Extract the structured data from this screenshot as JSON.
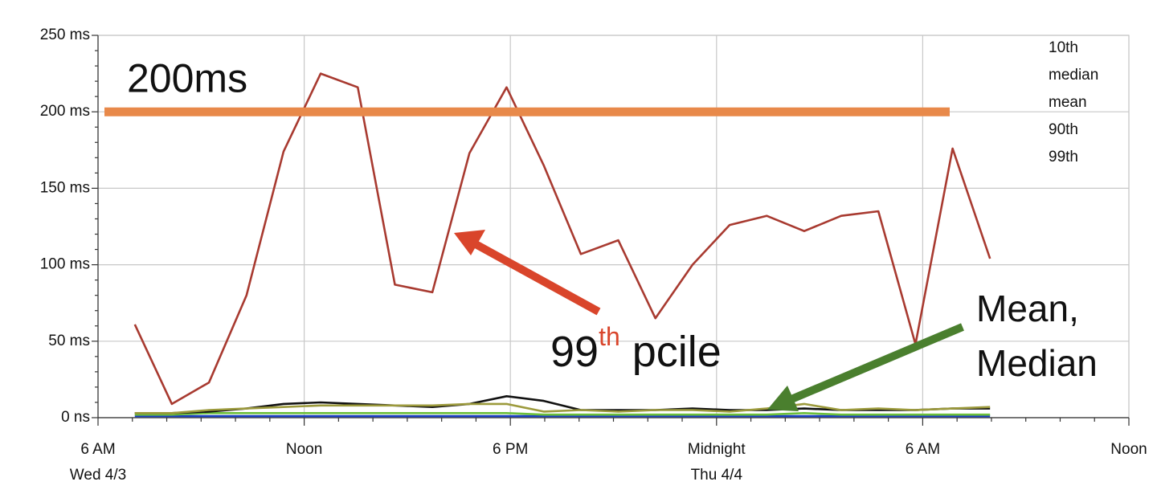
{
  "chart_data": {
    "type": "line",
    "x": [
      1.07,
      2.15,
      3.23,
      4.32,
      5.4,
      6.48,
      7.56,
      8.64,
      9.73,
      10.81,
      11.89,
      12.97,
      14.05,
      15.14,
      16.22,
      17.3,
      18.38,
      19.46,
      20.55,
      21.63,
      22.71,
      23.79,
      24.87,
      25.96
    ],
    "series": [
      {
        "name": "10th",
        "color": "#1a3fc4",
        "values": [
          1,
          1,
          1,
          1,
          1,
          1,
          1,
          1,
          1,
          1,
          1,
          1,
          1,
          1,
          1,
          1,
          1,
          1,
          1,
          1,
          1,
          1,
          1,
          1
        ]
      },
      {
        "name": "median",
        "color": "#6cbf3a",
        "values": [
          2,
          2,
          3,
          3,
          3,
          3,
          3,
          3,
          3,
          3,
          3,
          2,
          2,
          2,
          2,
          2,
          2,
          2,
          3,
          2,
          2,
          2,
          2,
          2
        ]
      },
      {
        "name": "mean",
        "color": "#111111",
        "values": [
          3,
          3,
          4,
          6,
          9,
          10,
          9,
          8,
          7,
          9,
          14,
          11,
          5,
          5,
          5,
          6,
          5,
          5,
          6,
          5,
          5,
          5,
          6,
          6
        ]
      },
      {
        "name": "90th",
        "color": "#9c9a3c",
        "values": [
          3,
          3,
          5,
          6,
          7,
          8,
          8,
          8,
          8,
          9,
          9,
          4,
          5,
          4,
          5,
          5,
          4,
          6,
          9,
          5,
          6,
          5,
          6,
          7
        ]
      },
      {
        "name": "99th",
        "color": "#a83a30",
        "values": [
          61,
          9,
          23,
          80,
          174,
          225,
          216,
          87,
          82,
          173,
          216,
          165,
          107,
          116,
          65,
          100,
          126,
          132,
          122,
          132,
          135,
          48,
          176,
          104
        ]
      }
    ],
    "xlim": [
      0,
      30
    ],
    "xticks": [
      {
        "value": 0,
        "label": "6 AM"
      },
      {
        "value": 6,
        "label": "Noon"
      },
      {
        "value": 12,
        "label": "6 PM"
      },
      {
        "value": 18,
        "label": "Midnight"
      },
      {
        "value": 24,
        "label": "6 AM"
      },
      {
        "value": 30,
        "label": "Noon"
      }
    ],
    "x_minor_ticks": [
      1,
      2,
      3,
      4,
      5,
      7,
      8,
      9,
      10,
      11,
      13,
      14,
      15,
      16,
      17,
      19,
      20,
      21,
      22,
      23,
      25,
      26,
      27,
      28,
      29
    ],
    "date_labels": [
      {
        "value": 0,
        "label": "Wed 4/3"
      },
      {
        "value": 18,
        "label": "Thu 4/4"
      }
    ],
    "ylim": [
      0,
      250
    ],
    "yticks": [
      {
        "value": 0,
        "label": "0 ns"
      },
      {
        "value": 50,
        "label": "50 ms"
      },
      {
        "value": 100,
        "label": "100 ms"
      },
      {
        "value": 150,
        "label": "150 ms"
      },
      {
        "value": 200,
        "label": "200 ms"
      },
      {
        "value": 250,
        "label": "250 ms"
      }
    ],
    "y_minor_ticks": [
      10,
      20,
      30,
      40,
      60,
      70,
      80,
      90,
      110,
      120,
      130,
      140,
      160,
      170,
      180,
      190,
      210,
      220,
      230,
      240
    ],
    "grid": true,
    "legend": "top-right",
    "threshold": {
      "value": 200,
      "label": "200ms",
      "color": "#e8894a"
    },
    "annotations": [
      {
        "text": "99",
        "sup": "th",
        "rest": " pcile",
        "color": "#d9452b"
      },
      {
        "lines": [
          "Mean,",
          "Median"
        ],
        "color": "#4a7f2e"
      }
    ]
  }
}
